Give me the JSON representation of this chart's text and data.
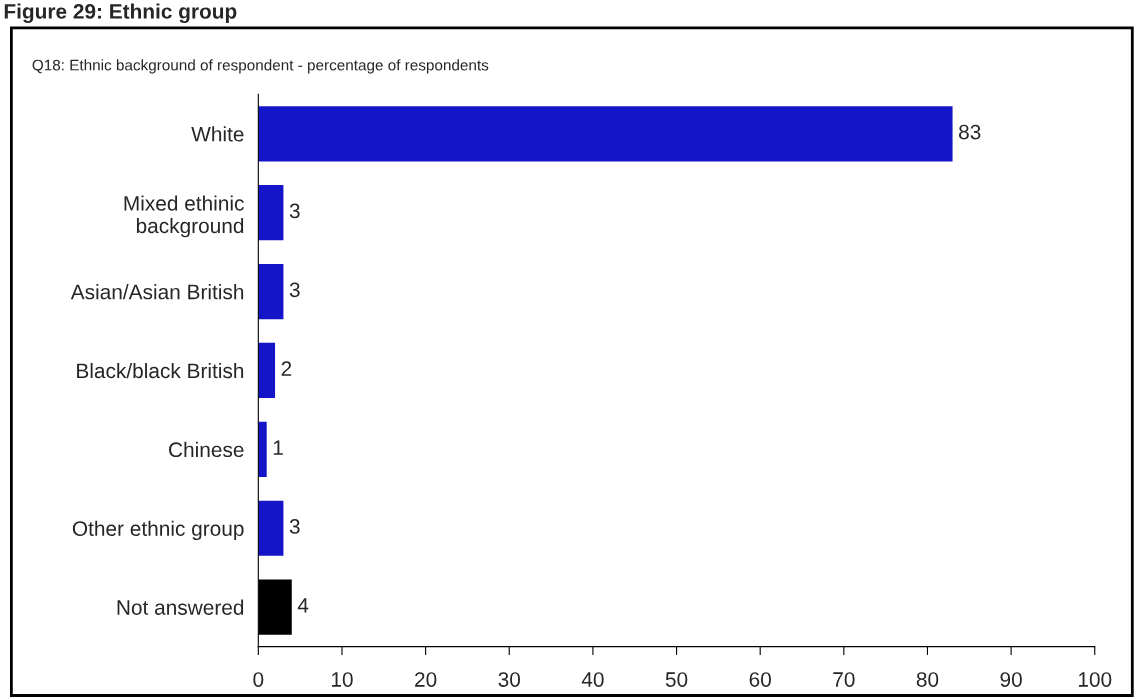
{
  "chart_data": {
    "type": "bar",
    "orientation": "horizontal",
    "title": "Figure 29: Ethnic group",
    "subtitle": "Q18: Ethnic background of respondent - percentage of respondents",
    "categories": [
      "White",
      "Mixed ethinic\nbackground",
      "Asian/Asian British",
      "Black/black British",
      "Chinese",
      "Other ethnic group",
      "Not answered"
    ],
    "values": [
      83,
      3,
      3,
      2,
      1,
      3,
      4
    ],
    "colors": [
      "#1414c8",
      "#1414c8",
      "#1414c8",
      "#1414c8",
      "#1414c8",
      "#1414c8",
      "#000000"
    ],
    "xlim": [
      0,
      100
    ],
    "xticks": [
      0,
      10,
      20,
      30,
      40,
      50,
      60,
      70,
      80,
      90,
      100
    ],
    "data_labels": true,
    "grid": false,
    "legend": false
  }
}
